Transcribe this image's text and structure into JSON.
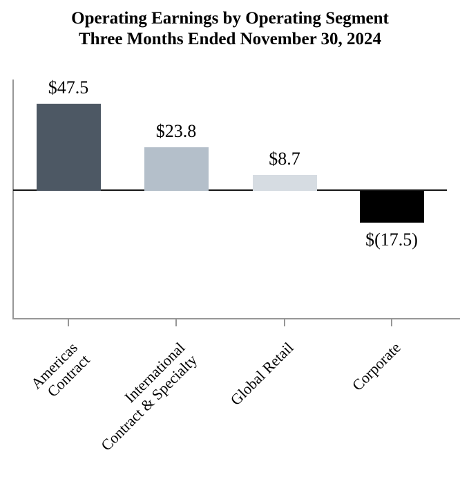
{
  "chart": {
    "title_line1": "Operating Earnings by Operating Segment",
    "title_line2": "Three Months Ended November 30, 2024"
  },
  "chart_data": {
    "type": "bar",
    "title": "Operating Earnings by Operating Segment",
    "subtitle": "Three Months Ended November 30, 2024",
    "categories": [
      "Americas Contract",
      "International Contract & Specialty",
      "Global Retail",
      "Corporate"
    ],
    "values": [
      47.5,
      23.8,
      8.7,
      -17.5
    ],
    "xlabel": "",
    "ylabel": "",
    "ylim": [
      -70,
      60
    ],
    "grid": false,
    "legend": false,
    "baseline": 0,
    "axis_color": "#969696",
    "zero_line_color": "#141414",
    "bars": [
      {
        "id": "americas-contract",
        "category_lines": [
          "Americas",
          "Contract"
        ],
        "value": 47.5,
        "value_label": "$47.5",
        "color": "#4d5864"
      },
      {
        "id": "international-contract-specialty",
        "category_lines": [
          "International",
          "Contract & Specialty"
        ],
        "value": 23.8,
        "value_label": "$23.8",
        "color": "#b4bfca"
      },
      {
        "id": "global-retail",
        "category_lines": [
          "Global Retail"
        ],
        "value": 8.7,
        "value_label": "$8.7",
        "color": "#d6dce2"
      },
      {
        "id": "corporate",
        "category_lines": [
          "Corporate"
        ],
        "value": -17.5,
        "value_label": "$(17.5)",
        "color": "#000000"
      }
    ]
  }
}
